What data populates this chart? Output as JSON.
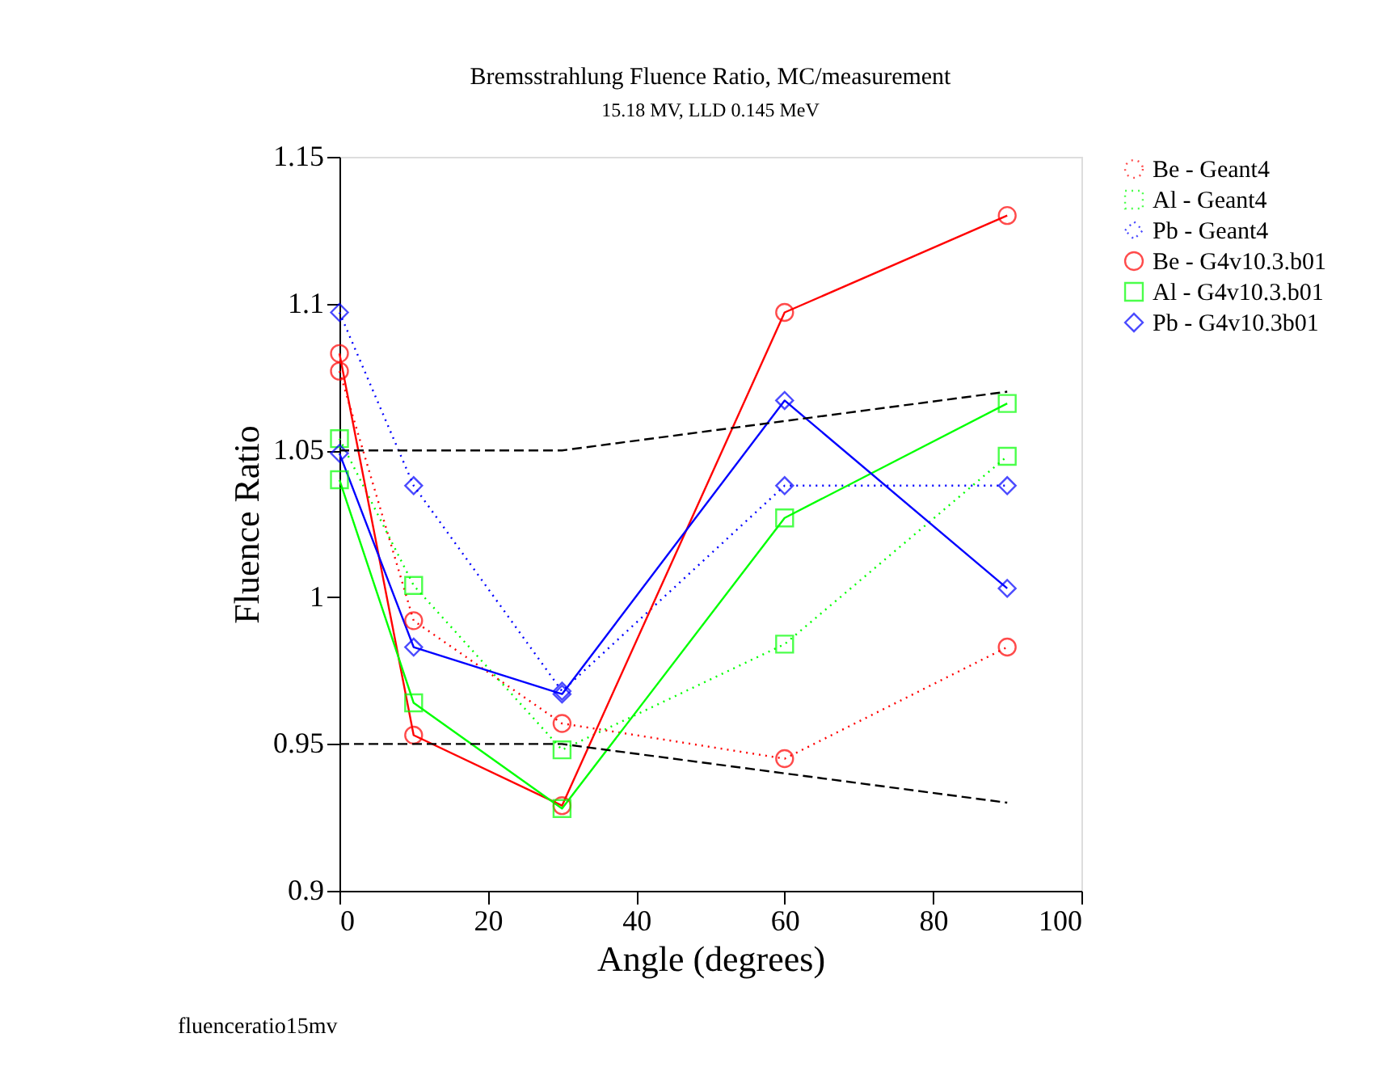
{
  "chart_data": {
    "type": "line",
    "title": "Bremsstrahlung Fluence Ratio, MC/measurement",
    "subtitle": "15.18 MV, LLD 0.145 MeV",
    "xlabel": "Angle (degrees)",
    "ylabel": "Fluence Ratio",
    "x": [
      0,
      10,
      30,
      60,
      90
    ],
    "series": [
      {
        "name": "Be - Geant4",
        "color": "#ff0000",
        "marker": "circle",
        "line_style": "dotted",
        "values": [
          1.077,
          0.992,
          0.957,
          0.945,
          0.983
        ]
      },
      {
        "name": "Al - Geant4",
        "color": "#00ff00",
        "marker": "square",
        "line_style": "dotted",
        "values": [
          1.054,
          1.004,
          0.948,
          0.984,
          1.048
        ]
      },
      {
        "name": "Pb - Geant4",
        "color": "#0000ff",
        "marker": "diamond",
        "line_style": "dotted",
        "values": [
          1.097,
          1.038,
          0.968,
          1.038,
          1.038
        ]
      },
      {
        "name": "Be - G4v10.3.b01",
        "color": "#ff0000",
        "marker": "circle",
        "line_style": "solid",
        "values": [
          1.083,
          0.953,
          0.929,
          1.097,
          1.13
        ]
      },
      {
        "name": "Al - G4v10.3.b01",
        "color": "#00ff00",
        "marker": "square",
        "line_style": "solid",
        "values": [
          1.04,
          0.964,
          0.928,
          1.027,
          1.066
        ]
      },
      {
        "name": "Pb - G4v10.3b01",
        "color": "#0000ff",
        "marker": "diamond",
        "line_style": "solid",
        "values": [
          1.049,
          0.983,
          0.967,
          1.067,
          1.003
        ]
      },
      {
        "color": "#000000",
        "marker": "none",
        "line_style": "dashed",
        "x": [
          0,
          30,
          60,
          90
        ],
        "values": [
          1.05,
          1.05,
          1.06,
          1.07
        ]
      },
      {
        "color": "#000000",
        "marker": "none",
        "line_style": "dashed",
        "x": [
          0,
          30,
          60,
          90
        ],
        "values": [
          0.95,
          0.95,
          0.94,
          0.93
        ]
      }
    ],
    "xlim": [
      0,
      100
    ],
    "xticks": [
      0,
      20,
      40,
      60,
      80,
      100
    ],
    "ylim": [
      0.9,
      1.15
    ],
    "yticks": [
      0.9,
      0.95,
      1,
      1.05,
      1.1,
      1.15
    ],
    "grid": false,
    "legend": "right",
    "annotations": [
      "fluenceratio15mv"
    ]
  }
}
